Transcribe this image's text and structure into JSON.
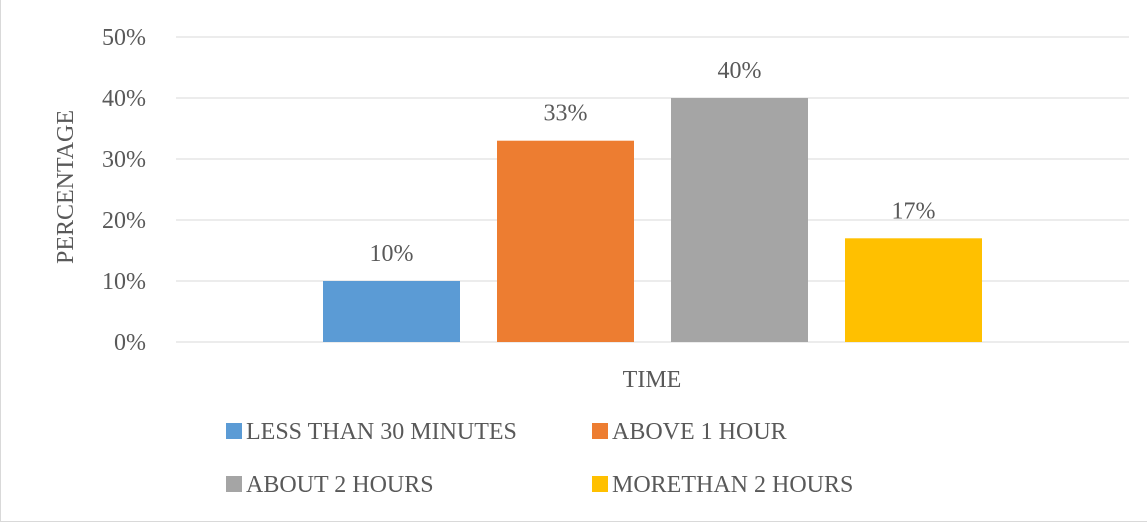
{
  "chart_data": {
    "type": "bar",
    "title": "",
    "xlabel": "TIME",
    "ylabel": "PERCENTAGE",
    "ylim": [
      0,
      50
    ],
    "y_tick_step": 10,
    "y_tick_format": "percent",
    "grid": true,
    "legend_position": "bottom",
    "categories": [
      "TIME"
    ],
    "series": [
      {
        "name": "LESS THAN 30 MINUTES",
        "values": [
          10
        ],
        "label": "10%",
        "color": "#5b9bd5"
      },
      {
        "name": "ABOVE 1 HOUR",
        "values": [
          33
        ],
        "label": "33%",
        "color": "#ed7d31"
      },
      {
        "name": "ABOUT 2 HOURS",
        "values": [
          40
        ],
        "label": "40%",
        "color": "#a5a5a5"
      },
      {
        "name": "MORETHAN 2 HOURS",
        "values": [
          17
        ],
        "label": "17%",
        "color": "#ffc000"
      }
    ]
  }
}
